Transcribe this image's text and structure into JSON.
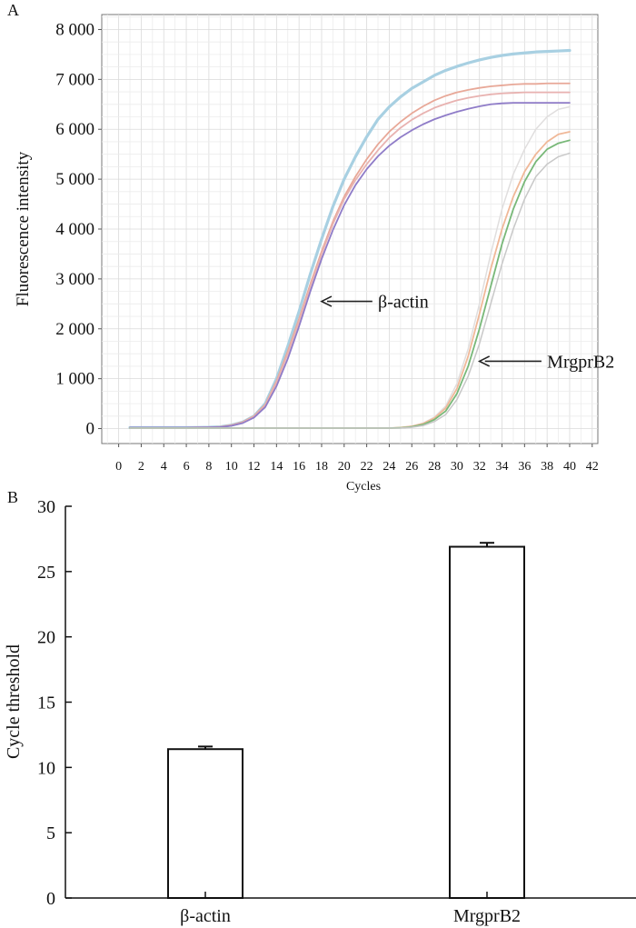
{
  "panels": {
    "a": {
      "label": "A"
    },
    "b": {
      "label": "B"
    }
  },
  "chart_data": [
    {
      "type": "line",
      "panel": "A",
      "title": "",
      "xlabel": "Cycles",
      "ylabel": "Fluorescence intensity",
      "xlim": [
        -1.5,
        42.5
      ],
      "ylim": [
        -300,
        8300
      ],
      "xticks": [
        0,
        2,
        4,
        6,
        8,
        10,
        12,
        14,
        16,
        18,
        20,
        22,
        24,
        26,
        28,
        30,
        32,
        34,
        36,
        38,
        40,
        42
      ],
      "yticks": [
        0,
        1000,
        2000,
        3000,
        4000,
        5000,
        6000,
        7000,
        8000
      ],
      "ytick_labels": [
        "0",
        "1 000",
        "2 000",
        "3 000",
        "4 000",
        "5 000",
        "6 000",
        "7 000",
        "8 000"
      ],
      "grid": true,
      "grid_minor_x": 1,
      "grid_minor_y": 250,
      "series": [
        {
          "name": "β-actin replicate 1",
          "group": "β-actin",
          "color": "#a8d0e2",
          "width": 3.2,
          "x": [
            1,
            2,
            3,
            4,
            5,
            6,
            7,
            8,
            9,
            10,
            11,
            12,
            13,
            14,
            15,
            16,
            17,
            18,
            19,
            20,
            21,
            22,
            23,
            24,
            25,
            26,
            27,
            28,
            29,
            30,
            31,
            32,
            33,
            34,
            35,
            36,
            37,
            38,
            39,
            40
          ],
          "y": [
            20,
            20,
            20,
            20,
            20,
            20,
            22,
            25,
            35,
            70,
            130,
            250,
            500,
            1000,
            1650,
            2350,
            3100,
            3800,
            4450,
            5000,
            5450,
            5850,
            6200,
            6450,
            6650,
            6820,
            6950,
            7080,
            7180,
            7260,
            7330,
            7390,
            7440,
            7480,
            7510,
            7530,
            7550,
            7560,
            7570,
            7580
          ]
        },
        {
          "name": "β-actin replicate 2",
          "group": "β-actin",
          "color": "#e8a898",
          "width": 1.8,
          "x": [
            1,
            2,
            3,
            4,
            5,
            6,
            7,
            8,
            9,
            10,
            11,
            12,
            13,
            14,
            15,
            16,
            17,
            18,
            19,
            20,
            21,
            22,
            23,
            24,
            25,
            26,
            27,
            28,
            29,
            30,
            31,
            32,
            33,
            34,
            35,
            36,
            37,
            38,
            39,
            40
          ],
          "y": [
            20,
            20,
            20,
            20,
            20,
            20,
            22,
            25,
            35,
            70,
            130,
            250,
            480,
            950,
            1550,
            2200,
            2900,
            3550,
            4150,
            4650,
            5050,
            5400,
            5700,
            5950,
            6150,
            6320,
            6460,
            6580,
            6670,
            6740,
            6790,
            6830,
            6860,
            6880,
            6900,
            6910,
            6910,
            6920,
            6920,
            6920
          ]
        },
        {
          "name": "β-actin replicate 3",
          "group": "β-actin",
          "color": "#e8b2b0",
          "width": 1.8,
          "x": [
            1,
            2,
            3,
            4,
            5,
            6,
            7,
            8,
            9,
            10,
            11,
            12,
            13,
            14,
            15,
            16,
            17,
            18,
            19,
            20,
            21,
            22,
            23,
            24,
            25,
            26,
            27,
            28,
            29,
            30,
            31,
            32,
            33,
            34,
            35,
            36,
            37,
            38,
            39,
            40
          ],
          "y": [
            20,
            20,
            20,
            20,
            20,
            20,
            22,
            25,
            35,
            65,
            120,
            240,
            460,
            920,
            1500,
            2150,
            2850,
            3500,
            4100,
            4600,
            4980,
            5300,
            5580,
            5830,
            6030,
            6190,
            6320,
            6430,
            6510,
            6580,
            6630,
            6670,
            6700,
            6720,
            6730,
            6740,
            6740,
            6740,
            6740,
            6740
          ]
        },
        {
          "name": "β-actin replicate 4",
          "group": "β-actin",
          "color": "#8f7cc8",
          "width": 1.8,
          "x": [
            1,
            2,
            3,
            4,
            5,
            6,
            7,
            8,
            9,
            10,
            11,
            12,
            13,
            14,
            15,
            16,
            17,
            18,
            19,
            20,
            21,
            22,
            23,
            24,
            25,
            26,
            27,
            28,
            29,
            30,
            31,
            32,
            33,
            34,
            35,
            36,
            37,
            38,
            39,
            40
          ],
          "y": [
            20,
            20,
            20,
            20,
            20,
            20,
            22,
            25,
            30,
            55,
            110,
            220,
            430,
            850,
            1400,
            2050,
            2750,
            3400,
            3980,
            4480,
            4880,
            5200,
            5460,
            5670,
            5840,
            5980,
            6100,
            6200,
            6280,
            6350,
            6410,
            6460,
            6500,
            6520,
            6530,
            6530,
            6530,
            6530,
            6530,
            6530
          ]
        },
        {
          "name": "MrgprB2 replicate 1",
          "group": "MrgprB2",
          "color": "#e0dede",
          "width": 1.5,
          "x": [
            1,
            4,
            8,
            12,
            16,
            20,
            24,
            25,
            26,
            27,
            28,
            29,
            30,
            31,
            32,
            33,
            34,
            35,
            36,
            37,
            38,
            39,
            40
          ],
          "y": [
            10,
            10,
            10,
            10,
            10,
            10,
            10,
            20,
            50,
            110,
            230,
            450,
            900,
            1600,
            2500,
            3500,
            4400,
            5100,
            5600,
            6000,
            6250,
            6400,
            6450
          ]
        },
        {
          "name": "MrgprB2 replicate 2",
          "group": "MrgprB2",
          "color": "#f0b898",
          "width": 1.8,
          "x": [
            1,
            4,
            8,
            12,
            16,
            20,
            24,
            25,
            26,
            27,
            28,
            29,
            30,
            31,
            32,
            33,
            34,
            35,
            36,
            37,
            38,
            39,
            40
          ],
          "y": [
            10,
            10,
            10,
            10,
            10,
            10,
            10,
            20,
            45,
            100,
            210,
            410,
            800,
            1450,
            2300,
            3200,
            4000,
            4650,
            5150,
            5500,
            5750,
            5900,
            5950
          ]
        },
        {
          "name": "MrgprB2 replicate 3",
          "group": "MrgprB2",
          "color": "#78b878",
          "width": 1.8,
          "x": [
            1,
            4,
            8,
            12,
            16,
            20,
            24,
            25,
            26,
            27,
            28,
            29,
            30,
            31,
            32,
            33,
            34,
            35,
            36,
            37,
            38,
            39,
            40
          ],
          "y": [
            10,
            10,
            10,
            10,
            10,
            10,
            10,
            15,
            35,
            80,
            180,
            350,
            700,
            1250,
            2000,
            2850,
            3700,
            4400,
            4950,
            5350,
            5600,
            5720,
            5780
          ]
        },
        {
          "name": "MrgprB2 replicate 4",
          "group": "MrgprB2",
          "color": "#c8c8c8",
          "width": 1.5,
          "x": [
            1,
            4,
            8,
            12,
            16,
            20,
            24,
            25,
            26,
            27,
            28,
            29,
            30,
            31,
            32,
            33,
            34,
            35,
            36,
            37,
            38,
            39,
            40
          ],
          "y": [
            10,
            10,
            10,
            10,
            10,
            10,
            10,
            12,
            25,
            60,
            140,
            280,
            580,
            1050,
            1700,
            2500,
            3300,
            4000,
            4600,
            5050,
            5300,
            5450,
            5520
          ]
        }
      ],
      "annotations": [
        {
          "text": "β-actin",
          "arrow_from": [
            22.5,
            2550
          ],
          "arrow_to": [
            18.0,
            2550
          ],
          "text_at": [
            23.0,
            2550
          ]
        },
        {
          "text": "MrgprB2",
          "arrow_from": [
            37.5,
            1350
          ],
          "arrow_to": [
            32.0,
            1350
          ],
          "text_at": [
            38.0,
            1350
          ]
        }
      ]
    },
    {
      "type": "bar",
      "panel": "B",
      "title": "",
      "xlabel": "",
      "ylabel": "Cycle threshold",
      "categories": [
        "β-actin",
        "MrgprB2"
      ],
      "values": [
        11.4,
        26.9
      ],
      "errors": [
        0.2,
        0.3
      ],
      "ylim": [
        0,
        30
      ],
      "yticks": [
        0,
        5,
        10,
        15,
        20,
        25,
        30
      ],
      "ytick_labels": [
        "0",
        "5",
        "10",
        "15",
        "20",
        "25",
        "30"
      ],
      "bar_fill": "#ffffff",
      "bar_edge": "#111111",
      "grid": false
    }
  ]
}
